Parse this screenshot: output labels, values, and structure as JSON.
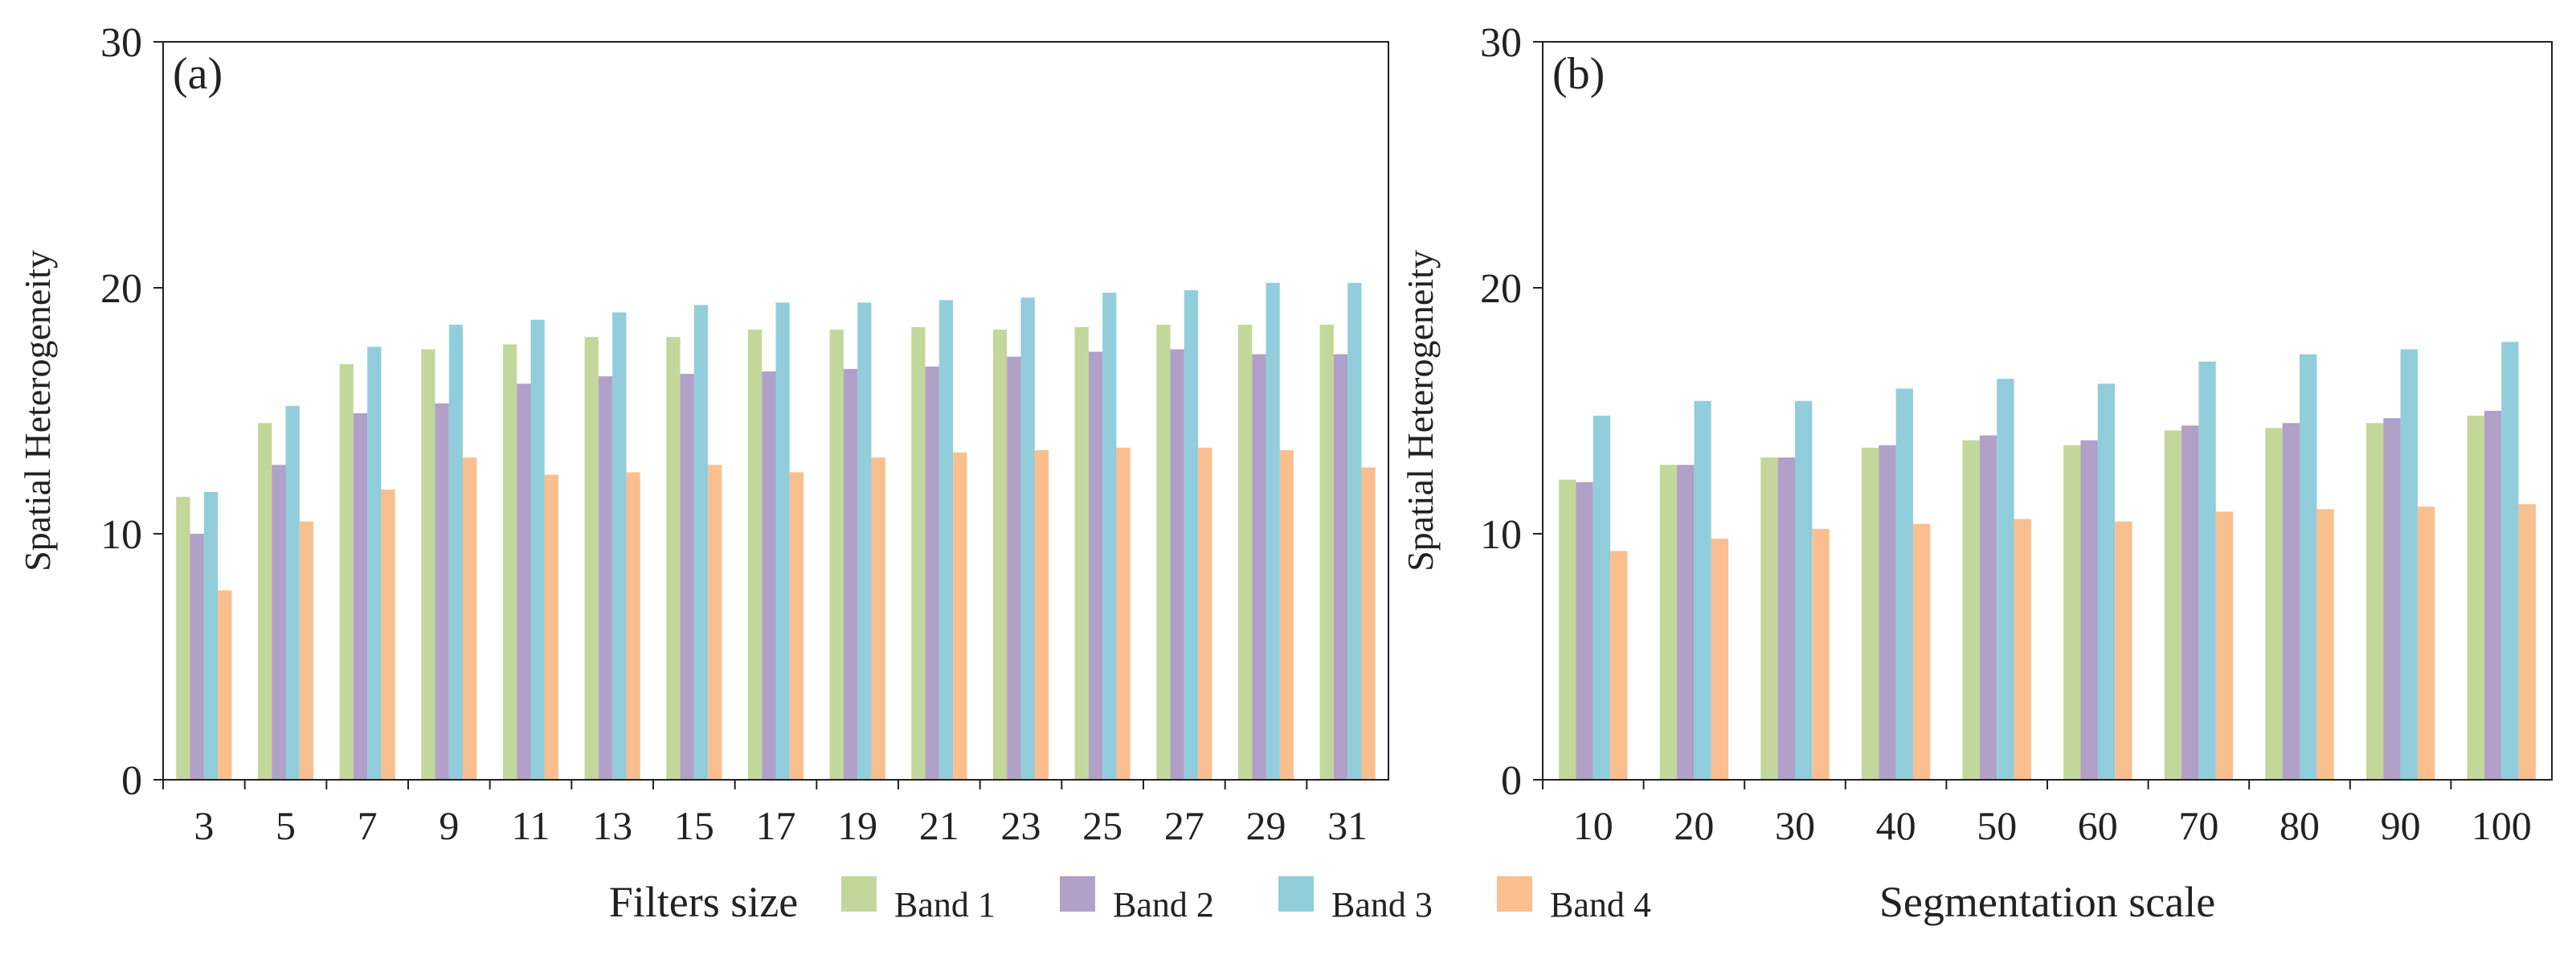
{
  "colors": {
    "Band 1": "#C4D79B",
    "Band 2": "#B1A0C7",
    "Band 3": "#92CDDC",
    "Band 4": "#FABF8F",
    "axis": "#222222"
  },
  "legend": {
    "entries": [
      "Band 1",
      "Band 2",
      "Band 3",
      "Band 4"
    ],
    "placement": "bottom-center"
  },
  "chart_data": [
    {
      "type": "bar",
      "panel_label": "(a)",
      "title": "",
      "xlabel": "Filters size",
      "ylabel": "Spatial Heterogeneity",
      "ylim": [
        0,
        30
      ],
      "yticks": [
        0,
        10,
        20,
        30
      ],
      "categories": [
        "3",
        "5",
        "7",
        "9",
        "11",
        "13",
        "15",
        "17",
        "19",
        "21",
        "23",
        "25",
        "27",
        "29",
        "31"
      ],
      "series": [
        {
          "name": "Band 1",
          "values": [
            11.5,
            14.5,
            16.9,
            17.5,
            17.7,
            18.0,
            18.0,
            18.3,
            18.3,
            18.4,
            18.3,
            18.4,
            18.5,
            18.5,
            18.5
          ]
        },
        {
          "name": "Band 2",
          "values": [
            10.0,
            12.8,
            14.9,
            15.3,
            16.1,
            16.4,
            16.5,
            16.6,
            16.7,
            16.8,
            17.2,
            17.4,
            17.5,
            17.3,
            17.3
          ]
        },
        {
          "name": "Band 3",
          "values": [
            11.7,
            15.2,
            17.6,
            18.5,
            18.7,
            19.0,
            19.3,
            19.4,
            19.4,
            19.5,
            19.6,
            19.8,
            19.9,
            20.2,
            20.2
          ]
        },
        {
          "name": "Band 4",
          "values": [
            7.7,
            10.5,
            11.8,
            13.1,
            12.4,
            12.5,
            12.8,
            12.5,
            13.1,
            13.3,
            13.4,
            13.5,
            13.5,
            13.4,
            12.7
          ]
        }
      ]
    },
    {
      "type": "bar",
      "panel_label": "(b)",
      "title": "",
      "xlabel": "Segmentation scale",
      "ylabel": "Spatial Heterogeneity",
      "ylim": [
        0,
        30
      ],
      "yticks": [
        0,
        10,
        20,
        30
      ],
      "categories": [
        "10",
        "20",
        "30",
        "40",
        "50",
        "60",
        "70",
        "80",
        "90",
        "100"
      ],
      "series": [
        {
          "name": "Band 1",
          "values": [
            12.2,
            12.8,
            13.1,
            13.5,
            13.8,
            13.6,
            14.2,
            14.3,
            14.5,
            14.8
          ]
        },
        {
          "name": "Band 2",
          "values": [
            12.1,
            12.8,
            13.1,
            13.6,
            14.0,
            13.8,
            14.4,
            14.5,
            14.7,
            15.0
          ]
        },
        {
          "name": "Band 3",
          "values": [
            14.8,
            15.4,
            15.4,
            15.9,
            16.3,
            16.1,
            17.0,
            17.3,
            17.5,
            17.8
          ]
        },
        {
          "name": "Band 4",
          "values": [
            9.3,
            9.8,
            10.2,
            10.4,
            10.6,
            10.5,
            10.9,
            11.0,
            11.1,
            11.2
          ]
        }
      ]
    }
  ]
}
